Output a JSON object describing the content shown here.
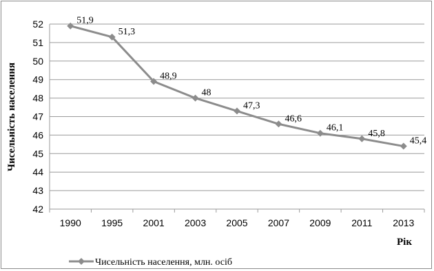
{
  "chart_data": {
    "type": "line",
    "title": "",
    "xlabel": "Рік",
    "ylabel": "Чисельність населення",
    "categories": [
      "1990",
      "1995",
      "2001",
      "2003",
      "2005",
      "2007",
      "2009",
      "2011",
      "2013"
    ],
    "series": [
      {
        "name": "Чисельність населення, млн. осіб",
        "values": [
          51.9,
          51.3,
          48.9,
          48,
          47.3,
          46.6,
          46.1,
          45.8,
          45.4
        ],
        "labels": [
          "51,9",
          "51,3",
          "48,9",
          "48",
          "47,3",
          "46,6",
          "46,1",
          "45,8",
          "45,4"
        ],
        "color": "#8c8c8c"
      }
    ],
    "ylim": [
      42,
      52
    ],
    "yticks": [
      42,
      43,
      44,
      45,
      46,
      47,
      48,
      49,
      50,
      51,
      52
    ],
    "grid": true,
    "legend_position": "bottom",
    "marker": "diamond"
  }
}
